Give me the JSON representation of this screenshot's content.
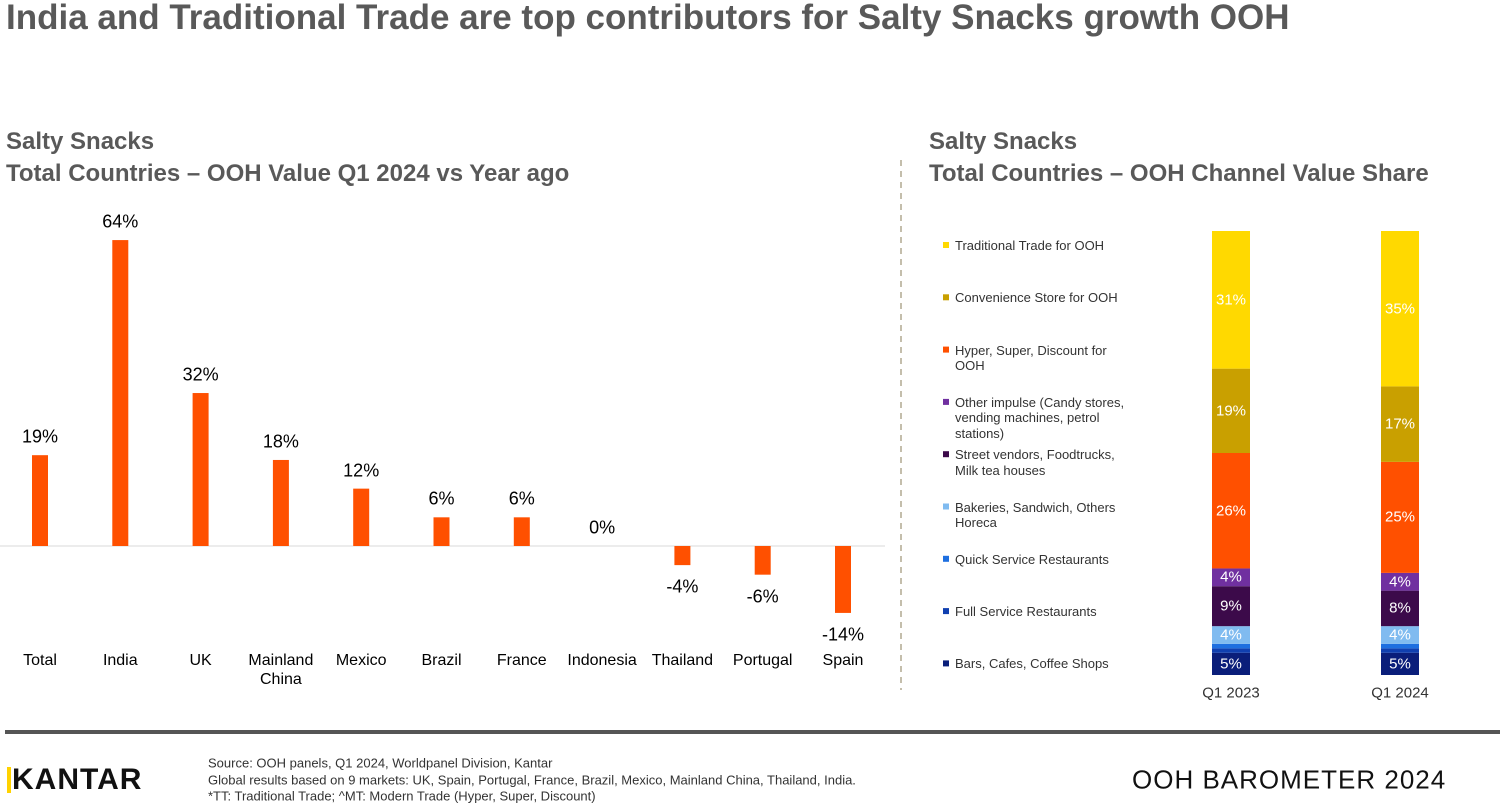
{
  "title": "India and Traditional Trade are top contributors for Salty Snacks growth OOH",
  "chart_data": [
    {
      "type": "bar",
      "title": "Salty Snacks",
      "subtitle": "Total Countries – OOH Value Q1 2024 vs Year ago",
      "categories": [
        "Total",
        "India",
        "UK",
        "Mainland China",
        "Mexico",
        "Brazil",
        "France",
        "Indonesia",
        "Thailand",
        "Portugal",
        "Spain"
      ],
      "values": [
        19,
        64,
        32,
        18,
        12,
        6,
        6,
        0,
        -4,
        -6,
        -14
      ],
      "value_labels": [
        "19%",
        "64%",
        "32%",
        "18%",
        "12%",
        "6%",
        "6%",
        "0%",
        "-4%",
        "-6%",
        "-14%"
      ],
      "color": "#ff5000"
    },
    {
      "type": "stacked-bar",
      "title": "Salty Snacks",
      "subtitle": "Total Countries – OOH Channel Value Share",
      "categories": [
        "Q1 2023",
        "Q1 2024"
      ],
      "series": [
        {
          "name": "Traditional Trade for OOH",
          "color": "#ffd900",
          "values": [
            31,
            35
          ],
          "value_labels": [
            "31%",
            "35%"
          ]
        },
        {
          "name": "Convenience Store for OOH",
          "color": "#c9a000",
          "values": [
            19,
            17
          ],
          "value_labels": [
            "19%",
            "17%"
          ]
        },
        {
          "name": "Hyper, Super, Discount for OOH",
          "color": "#ff5000",
          "values": [
            26,
            25
          ],
          "value_labels": [
            "26%",
            "25%"
          ]
        },
        {
          "name": "Other impulse (Candy stores, vending machines, petrol stations)",
          "color": "#7030a0",
          "values": [
            4,
            4
          ],
          "value_labels": [
            "4%",
            "4%"
          ]
        },
        {
          "name": "Street vendors, Foodtrucks, Milk tea houses",
          "color": "#3c0a4a",
          "values": [
            9,
            8
          ],
          "value_labels": [
            "9%",
            "8%"
          ]
        },
        {
          "name": "Bakeries, Sandwich, Others Horeca",
          "color": "#80bbf0",
          "values": [
            4,
            4
          ],
          "value_labels": [
            "4%",
            "4%"
          ]
        },
        {
          "name": "Quick Service Restaurants",
          "color": "#1e6fe0",
          "values": [
            1,
            1
          ],
          "value_labels": [
            null,
            null
          ]
        },
        {
          "name": "Full Service Restaurants",
          "color": "#1040b0",
          "values": [
            1,
            1
          ],
          "value_labels": [
            null,
            null
          ]
        },
        {
          "name": "Bars, Cafes, Coffee Shops",
          "color": "#0a1e7a",
          "values": [
            5,
            5
          ],
          "value_labels": [
            "5%",
            "5%"
          ]
        }
      ]
    }
  ],
  "footer": {
    "source": [
      "Source: OOH panels, Q1 2024, Worldpanel Division, Kantar",
      "Global results based on 9 markets: UK, Spain, Portugal, France, Brazil, Mexico, Mainland China, Thailand, India.",
      "*TT: Traditional Trade; ^MT: Modern Trade (Hyper, Super, Discount)"
    ],
    "logo": "KANTAR",
    "brand": "OOH BAROMETER 2024"
  }
}
